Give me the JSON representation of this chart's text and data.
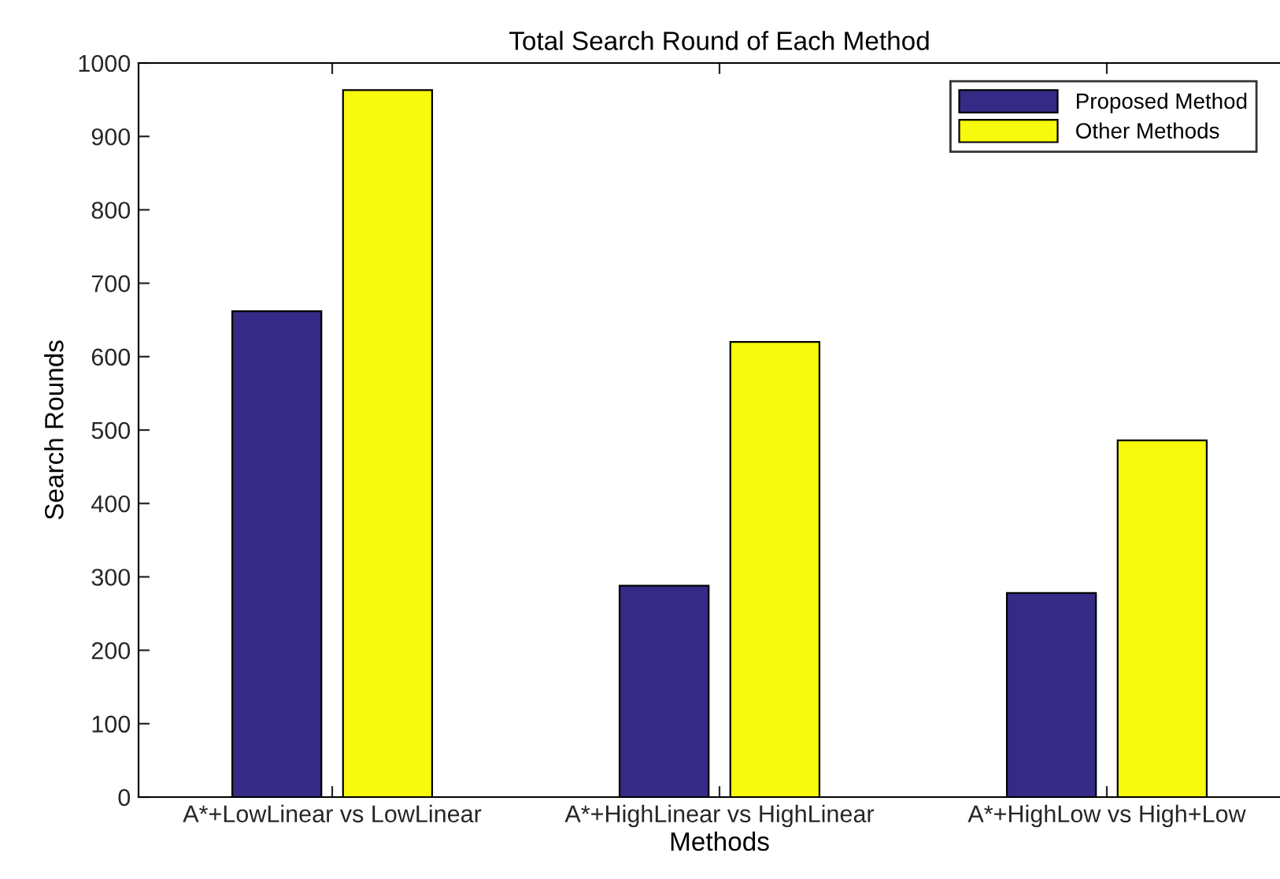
{
  "chart_data": {
    "type": "bar",
    "title": "Total Search Round of Each Method",
    "xlabel": "Methods",
    "ylabel": "Search Rounds",
    "categories": [
      "A*+LowLinear vs LowLinear",
      "A*+HighLinear vs HighLinear",
      "A*+HighLow vs High+Low"
    ],
    "series": [
      {
        "name": "Proposed Method",
        "color": "#352a86",
        "values": [
          662,
          288,
          278
        ]
      },
      {
        "name": "Other Methods",
        "color": "#f8fa0d",
        "values": [
          963,
          620,
          486
        ]
      }
    ],
    "ylim": [
      0,
      1000
    ],
    "yticks": [
      0,
      100,
      200,
      300,
      400,
      500,
      600,
      700,
      800,
      900,
      1000
    ],
    "grid": false,
    "legend": "top right"
  }
}
